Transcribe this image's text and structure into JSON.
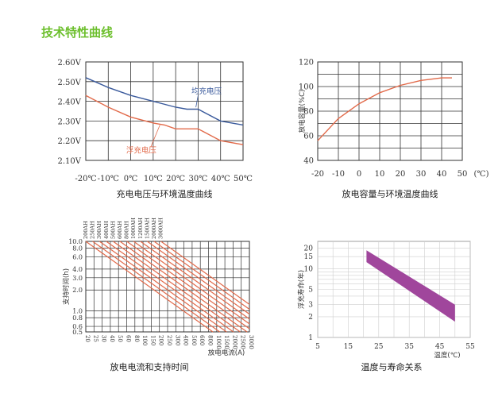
{
  "page": {
    "title": "技术特性曲线"
  },
  "colors": {
    "title": "#6cbf2c",
    "blue": "#3a5a9c",
    "red": "#e26a4a",
    "band": "#a0469c"
  },
  "chart_data": [
    {
      "type": "line",
      "caption": "充电电压与环境温度曲线",
      "x": [
        -20,
        -10,
        0,
        10,
        20,
        30,
        40,
        50
      ],
      "x_tick_labels": [
        "-20℃",
        "-10℃",
        "0℃",
        "10℃",
        "20℃",
        "30℃",
        "40℃",
        "50℃"
      ],
      "y_tick_labels": [
        "2.60V",
        "2.50V",
        "2.40V",
        "2.30V",
        "2.20V",
        "2.10V"
      ],
      "y_ticks": [
        2.6,
        2.5,
        2.4,
        2.3,
        2.2,
        2.1
      ],
      "xlim": [
        -20,
        50
      ],
      "ylim": [
        2.1,
        2.6
      ],
      "series": [
        {
          "name": "均充电压",
          "color": "#3a5a9c",
          "x": [
            -20,
            -10,
            0,
            10,
            20,
            25,
            30,
            40,
            50
          ],
          "y": [
            2.52,
            2.47,
            2.43,
            2.4,
            2.37,
            2.36,
            2.36,
            2.3,
            2.28
          ]
        },
        {
          "name": "浮充电压",
          "color": "#e26a4a",
          "x": [
            -20,
            -10,
            0,
            10,
            15,
            20,
            30,
            40,
            50
          ],
          "y": [
            2.43,
            2.37,
            2.32,
            2.29,
            2.28,
            2.26,
            2.26,
            2.2,
            2.18
          ]
        }
      ],
      "grid": true
    },
    {
      "type": "line",
      "caption": "放电容量与环境温度曲线",
      "ylabel": "放电容量(%C)",
      "x_unit": "(℃)",
      "x_ticks": [
        -20,
        -10,
        0,
        10,
        20,
        30,
        40,
        50
      ],
      "y_ticks": [
        40,
        60,
        80,
        100,
        120
      ],
      "xlim": [
        -20,
        50
      ],
      "ylim": [
        40,
        120
      ],
      "series": [
        {
          "color": "#e26a4a",
          "x": [
            -20,
            -10,
            0,
            10,
            20,
            30,
            40,
            45
          ],
          "y": [
            56,
            74,
            86,
            95,
            101,
            105,
            107,
            107
          ]
        }
      ],
      "grid": true
    },
    {
      "type": "line",
      "caption": "放电电流和支持时间",
      "ylabel": "支持时间(h)",
      "xlabel": "放电电流(A)",
      "x_tick_labels": [
        "20",
        "25",
        "30",
        "40",
        "50",
        "60",
        "80",
        "100",
        "150",
        "200",
        "250",
        "300",
        "400",
        "500",
        "600",
        "800",
        "1000",
        "1500",
        "2000",
        "2500",
        "3000"
      ],
      "y_tick_labels": [
        "10.0",
        "8.0",
        "6.0",
        "4.0",
        "3.0",
        "2.0",
        "1.0",
        "0.8",
        "0.6",
        "0.5"
      ],
      "y_ticks": [
        10,
        8,
        6,
        4,
        3,
        2,
        1,
        0.8,
        0.6,
        0.5
      ],
      "top_labels": [
        "200AH",
        "250AH",
        "300AH",
        "400AH",
        "500AH",
        "600AH",
        "800AH",
        "1000AH",
        "1200AH",
        "1500AH",
        "2000AH",
        "3000AH"
      ],
      "ylim": [
        0.5,
        10
      ],
      "yscale": "log",
      "series_color": "#e26a4a",
      "grid": true
    },
    {
      "type": "area",
      "caption": "温度与寿命关系",
      "ylabel": "浮充寿命(年)",
      "xlabel": "温度(℃)",
      "x_ticks": [
        5,
        15,
        25,
        35,
        45,
        55
      ],
      "y_tick_labels": [
        "20",
        "15",
        "10",
        "5",
        "3",
        "2",
        "1"
      ],
      "y_ticks": [
        20,
        15,
        10,
        5,
        3,
        2,
        1
      ],
      "xlim": [
        5,
        55
      ],
      "ylim": [
        1,
        25
      ],
      "yscale": "log",
      "band": {
        "color": "#a0469c",
        "upper": [
          [
            21,
            18.5
          ],
          [
            50,
            3.0
          ]
        ],
        "lower": [
          [
            21,
            12.5
          ],
          [
            50,
            1.7
          ]
        ]
      },
      "grid": true
    }
  ]
}
